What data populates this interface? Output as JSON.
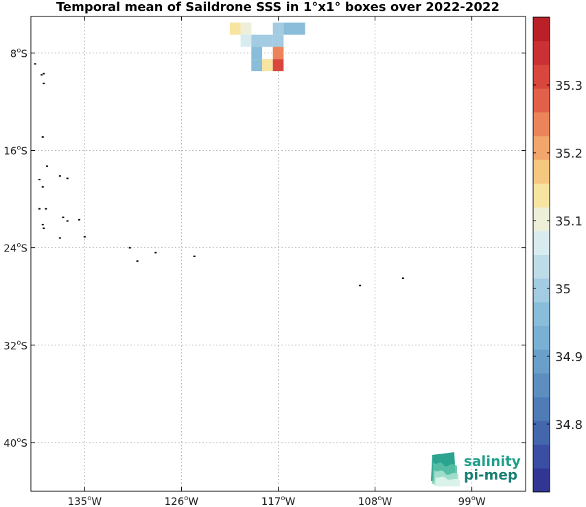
{
  "title": "Temporal mean of Saildrone SSS in 1°x1° boxes over 2022-2022",
  "map": {
    "lon_range": [
      -140,
      -94
    ],
    "lat_range": [
      -44,
      -5
    ],
    "lon_ticks": [
      {
        "value": -135,
        "label": "135",
        "hemi": "W"
      },
      {
        "value": -126,
        "label": "126",
        "hemi": "W"
      },
      {
        "value": -117,
        "label": "117",
        "hemi": "W"
      },
      {
        "value": -108,
        "label": "108",
        "hemi": "W"
      },
      {
        "value": -99,
        "label": "99",
        "hemi": "W"
      }
    ],
    "lat_ticks": [
      {
        "value": -8,
        "label": "8",
        "hemi": "S"
      },
      {
        "value": -16,
        "label": "16",
        "hemi": "S"
      },
      {
        "value": -24,
        "label": "24",
        "hemi": "S"
      },
      {
        "value": -32,
        "label": "32",
        "hemi": "S"
      },
      {
        "value": -40,
        "label": "40",
        "hemi": "S"
      }
    ],
    "grid": true
  },
  "chart_data": {
    "type": "heatmap",
    "title": "Temporal mean of Saildrone SSS in 1°x1° boxes over 2022-2022",
    "cell_size_deg": 1,
    "cells": [
      {
        "lon": -121,
        "lat": -6,
        "value": 35.13
      },
      {
        "lon": -120,
        "lat": -6,
        "value": 35.11
      },
      {
        "lon": -117,
        "lat": -6,
        "value": 35.01
      },
      {
        "lon": -116,
        "lat": -6,
        "value": 34.97
      },
      {
        "lon": -115,
        "lat": -6,
        "value": 34.97
      },
      {
        "lon": -120,
        "lat": -7,
        "value": 35.06
      },
      {
        "lon": -119,
        "lat": -7,
        "value": 35.01
      },
      {
        "lon": -118,
        "lat": -7,
        "value": 35.01
      },
      {
        "lon": -117,
        "lat": -7,
        "value": 35.01
      },
      {
        "lon": -119,
        "lat": -8,
        "value": 34.97
      },
      {
        "lon": -117,
        "lat": -8,
        "value": 35.24
      },
      {
        "lon": -119,
        "lat": -9,
        "value": 34.95
      },
      {
        "lon": -118,
        "lat": -9,
        "value": 35.13
      },
      {
        "lon": -117,
        "lat": -9,
        "value": 35.32
      }
    ],
    "islands": [
      {
        "lon": -139.6,
        "lat": -8.9
      },
      {
        "lon": -139.0,
        "lat": -9.8
      },
      {
        "lon": -138.8,
        "lat": -9.7
      },
      {
        "lon": -138.8,
        "lat": -10.5
      },
      {
        "lon": -138.9,
        "lat": -14.9
      },
      {
        "lon": -138.5,
        "lat": -17.3
      },
      {
        "lon": -137.3,
        "lat": -18.1
      },
      {
        "lon": -136.6,
        "lat": -18.3
      },
      {
        "lon": -139.2,
        "lat": -18.4
      },
      {
        "lon": -138.9,
        "lat": -19.0
      },
      {
        "lon": -139.2,
        "lat": -20.8
      },
      {
        "lon": -138.6,
        "lat": -20.8
      },
      {
        "lon": -137.0,
        "lat": -21.5
      },
      {
        "lon": -136.6,
        "lat": -21.8
      },
      {
        "lon": -135.5,
        "lat": -21.7
      },
      {
        "lon": -138.9,
        "lat": -22.1
      },
      {
        "lon": -138.8,
        "lat": -22.4
      },
      {
        "lon": -137.3,
        "lat": -23.2
      },
      {
        "lon": -135.0,
        "lat": -23.1
      },
      {
        "lon": -130.8,
        "lat": -24.0
      },
      {
        "lon": -130.1,
        "lat": -25.1
      },
      {
        "lon": -128.4,
        "lat": -24.4
      },
      {
        "lon": -124.8,
        "lat": -24.7
      },
      {
        "lon": -109.4,
        "lat": -27.1
      },
      {
        "lon": -105.4,
        "lat": -26.5
      }
    ],
    "colorbar": {
      "min": 34.7,
      "max": 35.4,
      "step": 0.035,
      "ticks": [
        34.8,
        34.9,
        35,
        35.1,
        35.2,
        35.3
      ],
      "tick_labels": [
        "34.8",
        "34.9",
        "35",
        "35.1",
        "35.2",
        "35.3"
      ],
      "colors": [
        "#313695",
        "#3a4ea3",
        "#4466ad",
        "#4f7bb7",
        "#5c8ec0",
        "#6a9fc9",
        "#79b0d3",
        "#89bdd9",
        "#a3cbe2",
        "#bddce8",
        "#d8ecf0",
        "#eeefd9",
        "#f7e4a0",
        "#f6c77f",
        "#f3a66c",
        "#ec8459",
        "#e2604a",
        "#d8463e",
        "#cb3134",
        "#bb2028"
      ]
    }
  },
  "logo": {
    "line1": "salinity",
    "line2": "pi-mep",
    "color": "#1f9e89"
  }
}
